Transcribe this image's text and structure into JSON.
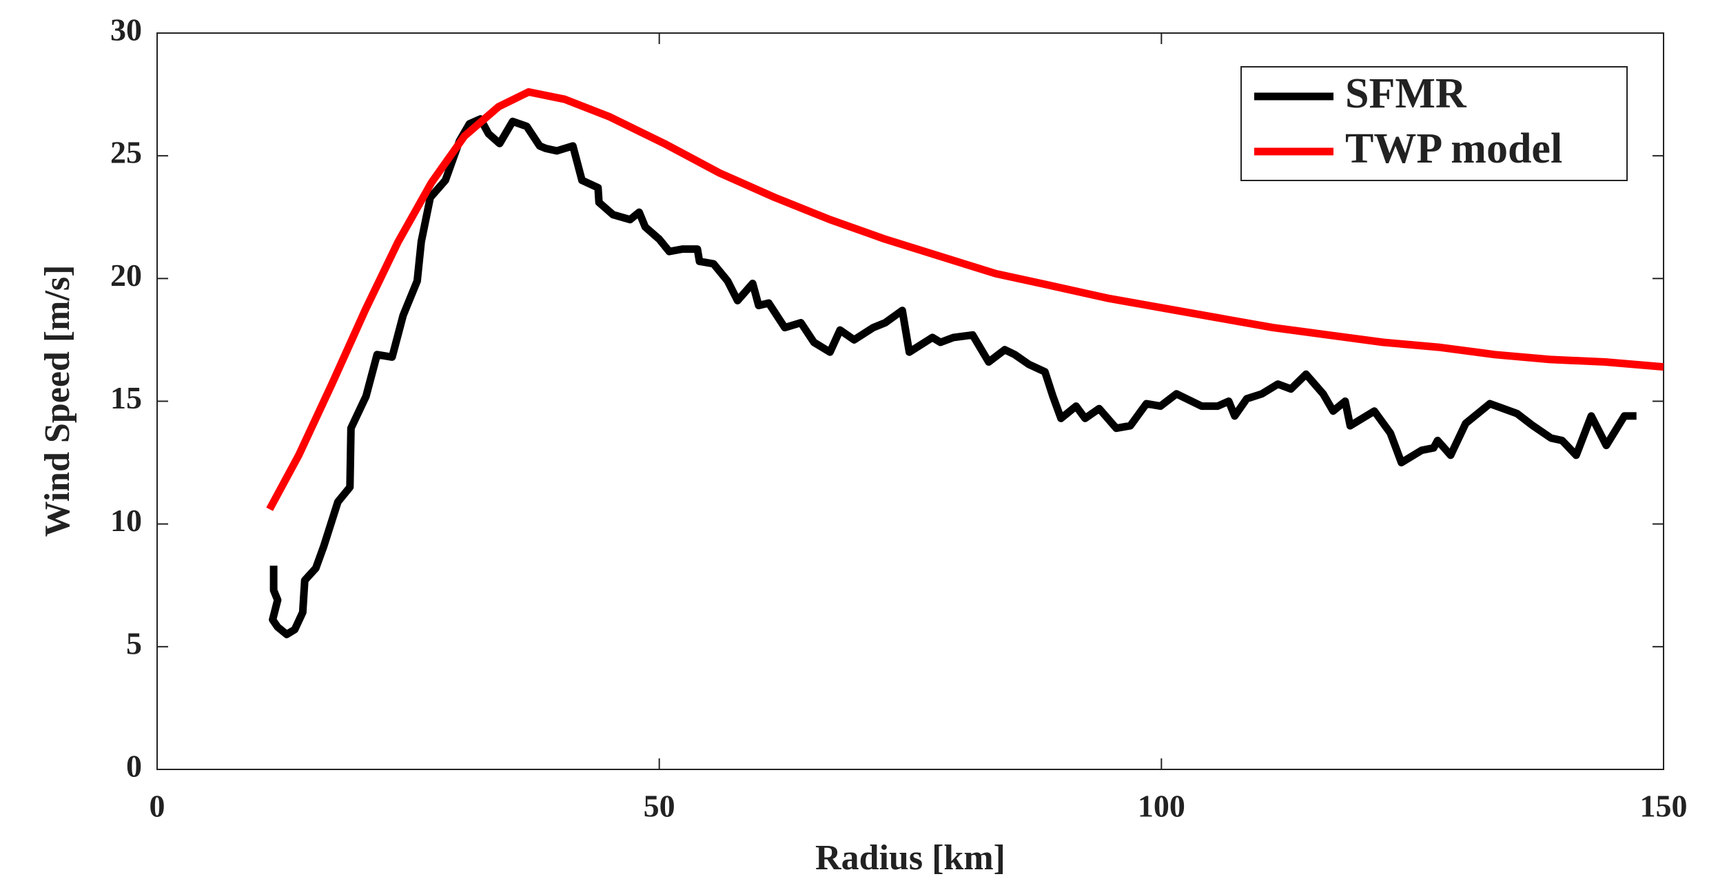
{
  "chart_data": {
    "type": "line",
    "xlabel": "Radius [km]",
    "ylabel": "Wind Speed [m/s]",
    "xlim": [
      0,
      150
    ],
    "xticks": [
      0,
      50,
      100,
      150
    ],
    "ylim": [
      0,
      30
    ],
    "yticks": [
      0,
      5,
      10,
      15,
      20,
      25,
      30
    ],
    "grid": false,
    "legend": "upper right",
    "series": [
      {
        "name": "SFMR",
        "color": "#000000",
        "x": [
          11.6,
          11.6,
          12.0,
          11.5,
          12.0,
          12.9,
          13.7,
          14.5,
          14.7,
          15.8,
          16.6,
          18.0,
          19.2,
          19.3,
          20.8,
          21.9,
          23.4,
          24.5,
          25.9,
          26.3,
          27.2,
          28.7,
          30.1,
          31.1,
          32.2,
          33.0,
          34.1,
          35.4,
          36.8,
          38.1,
          38.7,
          39.8,
          41.4,
          42.3,
          43.9,
          44.0,
          45.4,
          47.1,
          48.0,
          48.6,
          50.0,
          51.0,
          52.3,
          53.8,
          54.0,
          55.4,
          56.8,
          57.8,
          59.3,
          59.9,
          60.9,
          62.5,
          64.1,
          65.4,
          67.0,
          68.0,
          69.4,
          71.3,
          72.5,
          74.2,
          74.9,
          77.2,
          78.0,
          79.3,
          81.2,
          82.8,
          84.4,
          85.4,
          86.8,
          88.4,
          89.2,
          90.0,
          91.5,
          92.4,
          93.8,
          95.5,
          96.9,
          98.5,
          99.9,
          101.5,
          104.0,
          105.6,
          106.7,
          107.3,
          108.5,
          110.0,
          111.6,
          112.9,
          114.4,
          116.1,
          117.1,
          118.3,
          118.8,
          121.2,
          122.8,
          123.9,
          125.9,
          127.1,
          127.5,
          128.8,
          130.3,
          132.7,
          135.4,
          137.0,
          138.8,
          139.9,
          141.3,
          142.8,
          144.3,
          146.1,
          147.3
        ],
        "values": [
          8.3,
          7.3,
          6.9,
          6.1,
          5.8,
          5.5,
          5.7,
          6.4,
          7.7,
          8.2,
          9.1,
          10.9,
          11.5,
          13.9,
          15.2,
          16.9,
          16.8,
          18.5,
          19.9,
          21.5,
          23.3,
          24.0,
          25.6,
          26.3,
          26.5,
          25.9,
          25.5,
          26.4,
          26.2,
          25.4,
          25.3,
          25.2,
          25.4,
          24.0,
          23.7,
          23.1,
          22.6,
          22.4,
          22.7,
          22.1,
          21.6,
          21.1,
          21.2,
          21.2,
          20.7,
          20.6,
          19.9,
          19.1,
          19.8,
          18.9,
          19.0,
          18.0,
          18.2,
          17.4,
          17.0,
          17.9,
          17.5,
          18.0,
          18.2,
          18.7,
          17.0,
          17.6,
          17.4,
          17.6,
          17.7,
          16.6,
          17.1,
          16.9,
          16.5,
          16.2,
          15.2,
          14.3,
          14.8,
          14.3,
          14.7,
          13.9,
          14.0,
          14.9,
          14.8,
          15.3,
          14.8,
          14.8,
          15.0,
          14.4,
          15.1,
          15.3,
          15.7,
          15.5,
          16.1,
          15.3,
          14.6,
          15.0,
          14.0,
          14.6,
          13.7,
          12.5,
          13.0,
          13.1,
          13.4,
          12.8,
          14.1,
          14.9,
          14.5,
          14.0,
          13.5,
          13.4,
          12.8,
          14.4,
          13.2,
          14.4,
          14.4
        ]
      },
      {
        "name": "TWP model",
        "color": "#ff0000",
        "x": [
          11.2,
          14.1,
          17.4,
          20.7,
          24.0,
          27.3,
          30.6,
          34.0,
          37.0,
          40.6,
          45.0,
          50.5,
          56.0,
          61.5,
          67.0,
          72.5,
          78.0,
          83.5,
          89.1,
          94.6,
          100.1,
          105.6,
          111.1,
          116.6,
          122.1,
          127.6,
          133.2,
          138.7,
          144.2,
          150.0
        ],
        "values": [
          10.6,
          12.8,
          15.7,
          18.7,
          21.5,
          23.9,
          25.8,
          27.0,
          27.6,
          27.3,
          26.6,
          25.5,
          24.3,
          23.3,
          22.4,
          21.6,
          20.9,
          20.2,
          19.7,
          19.2,
          18.8,
          18.4,
          18.0,
          17.7,
          17.4,
          17.2,
          16.9,
          16.7,
          16.6,
          16.4
        ]
      }
    ]
  }
}
